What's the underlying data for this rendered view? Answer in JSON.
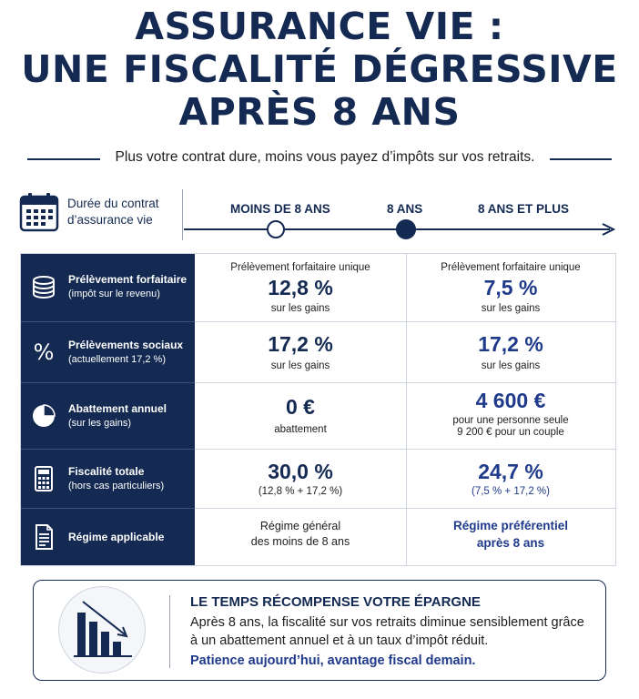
{
  "title": {
    "line1": "ASSURANCE VIE :",
    "line2": "UNE FISCALITÉ DÉGRESSIVE",
    "line3": "APRÈS 8 ANS"
  },
  "subtitle": "Plus votre contrat dure, moins vous payez d’impôts sur vos retraits.",
  "timeline": {
    "label_line1": "Durée du contrat",
    "label_line2": "d’assurance vie",
    "phases": [
      "MOINS DE 8 ANS",
      "8 ANS",
      "8 ANS ET PLUS"
    ],
    "icon": "calendar-icon"
  },
  "rows": [
    {
      "icon": "coins-icon",
      "label": "Prélèvement forfaitaire",
      "sublabel": "(impôt sur le revenu)",
      "col1": {
        "top": "Prélèvement forfaitaire unique",
        "value": "12,8 %",
        "bottom": "sur les gains"
      },
      "col2": {
        "top": "Prélèvement forfaitaire unique",
        "value": "7,5 %",
        "bottom": "sur les gains"
      }
    },
    {
      "icon": "percent-icon",
      "label": "Prélèvements sociaux",
      "sublabel": "(actuellement 17,2 %)",
      "col1": {
        "value": "17,2 %",
        "bottom": "sur les gains"
      },
      "col2": {
        "value": "17,2 %",
        "bottom": "sur les gains"
      }
    },
    {
      "icon": "pie-chart-icon",
      "label": "Abattement annuel",
      "sublabel": "(sur les gains)",
      "col1": {
        "value": "0 €",
        "bottom": "abattement"
      },
      "col2": {
        "value": "4 600 €",
        "bottom": "pour une personne seule",
        "bottom2": "9 200 € pour un couple"
      }
    },
    {
      "icon": "calculator-icon",
      "label": "Fiscalité totale",
      "sublabel": "(hors cas particuliers)",
      "col1": {
        "value": "30,0 %",
        "bottom": "(12,8 % + 17,2 %)"
      },
      "col2": {
        "value": "24,7 %",
        "bottom": "(7,5 % + 17,2 %)"
      }
    },
    {
      "icon": "document-icon",
      "label": "Régime applicable",
      "col1": {
        "line1": "Régime général",
        "line2": "des moins de 8 ans"
      },
      "col2": {
        "line1": "Régime préférentiel",
        "line2": "après 8 ans"
      }
    }
  ],
  "callout": {
    "icon": "declining-bar-chart-icon",
    "title": "LE TEMPS RÉCOMPENSE VOTRE ÉPARGNE",
    "text": "Après 8 ans, la fiscalité sur vos retraits diminue sensiblement grâce à un abattement annuel et à un taux d’impôt réduit.",
    "footer": "Patience aujourd’hui, avantage fiscal demain."
  },
  "colors": {
    "navy": "#142a52",
    "blue_accent": "#1f3a8a",
    "border": "#cfd5de"
  }
}
